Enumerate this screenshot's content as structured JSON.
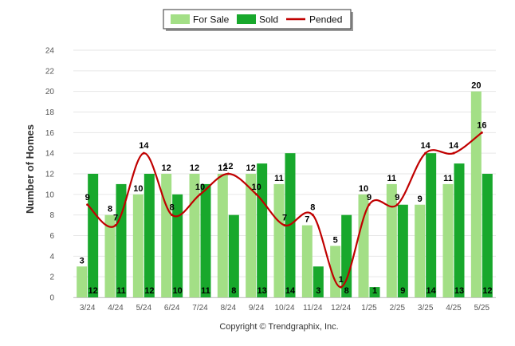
{
  "colors": {
    "for_sale": "#a3df86",
    "sold": "#18a82c",
    "pended": "#c00000",
    "grid": "#e6e6e6"
  },
  "footer": "Copyright © Trendgraphix, Inc.",
  "chart_data": {
    "type": "bar",
    "categories": [
      "3/24",
      "4/24",
      "5/24",
      "6/24",
      "7/24",
      "8/24",
      "9/24",
      "10/24",
      "11/24",
      "12/24",
      "1/25",
      "2/25",
      "3/25",
      "4/25",
      "5/25"
    ],
    "series": [
      {
        "name": "For Sale",
        "type": "bar",
        "values": [
          3,
          8,
          10,
          12,
          12,
          12,
          12,
          11,
          7,
          5,
          10,
          11,
          9,
          11,
          20
        ]
      },
      {
        "name": "Sold",
        "type": "bar",
        "values": [
          12,
          11,
          12,
          10,
          11,
          8,
          13,
          14,
          3,
          8,
          1,
          9,
          14,
          13,
          12
        ]
      },
      {
        "name": "Pended",
        "type": "line",
        "values": [
          9,
          7,
          14,
          8,
          10,
          12,
          10,
          7,
          8,
          1,
          9,
          9,
          14,
          14,
          16
        ]
      }
    ],
    "ylabel": "Number of Homes",
    "ylim": [
      0,
      24
    ],
    "yticks": [
      0,
      2,
      4,
      6,
      8,
      10,
      12,
      14,
      16,
      18,
      20,
      22,
      24
    ],
    "grid": true,
    "legend_position": "top-center"
  }
}
